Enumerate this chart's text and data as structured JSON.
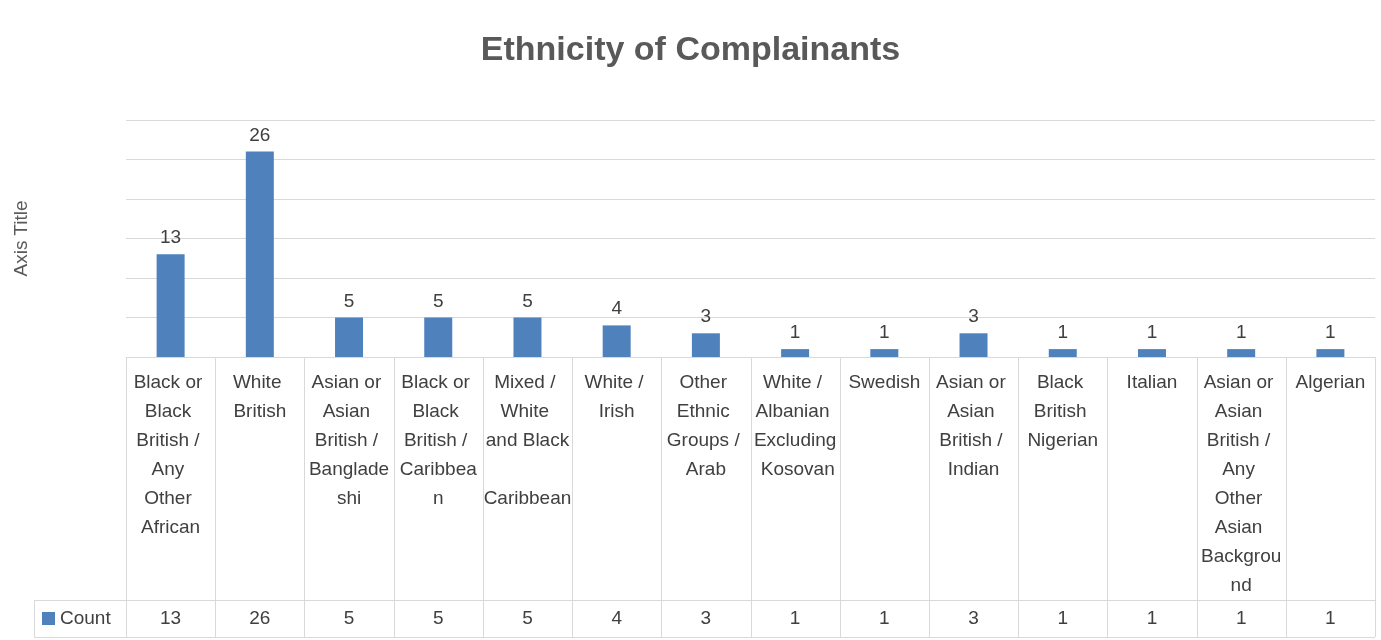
{
  "chart_data": {
    "type": "bar",
    "title": "Ethnicity of Complainants",
    "ylabel": "Axis Title",
    "categories": [
      "Black or Black British / Any Other African",
      "White British",
      "Asian or Asian British / Bangladeshi",
      "Black or Black British / Caribbean",
      "Mixed / White and Black Caribbean",
      "White / Irish",
      "Other Ethnic Groups / Arab",
      "White / Albanian Excluding Kosovan",
      "Swedish",
      "Asian or Asian British / Indian",
      "Black British Nigerian",
      "Italian",
      "Asian or Asian British / Any Other Asian Background",
      "Algerian"
    ],
    "series": [
      {
        "name": "Count",
        "color": "#4f81bd",
        "values": [
          13,
          26,
          5,
          5,
          5,
          4,
          3,
          1,
          1,
          3,
          1,
          1,
          1,
          1
        ],
        "value_labels": [
          "13",
          "26",
          "5",
          "5",
          "5",
          "4",
          "3",
          "1",
          "1",
          "3",
          "1",
          "1",
          "1",
          "1"
        ]
      }
    ],
    "ylim": [
      0,
      30
    ],
    "yticks": [
      {
        "value": 0,
        "label": null
      },
      {
        "value": 5,
        "label": null
      },
      {
        "value": 10,
        "label": null
      },
      {
        "value": 15,
        "label": null
      },
      {
        "value": 20,
        "label": null
      },
      {
        "value": 25,
        "label": null
      },
      {
        "value": 30,
        "label": null
      }
    ],
    "tick_labels": "x",
    "grid": "y",
    "data_labels": true,
    "legend": "bottom"
  }
}
